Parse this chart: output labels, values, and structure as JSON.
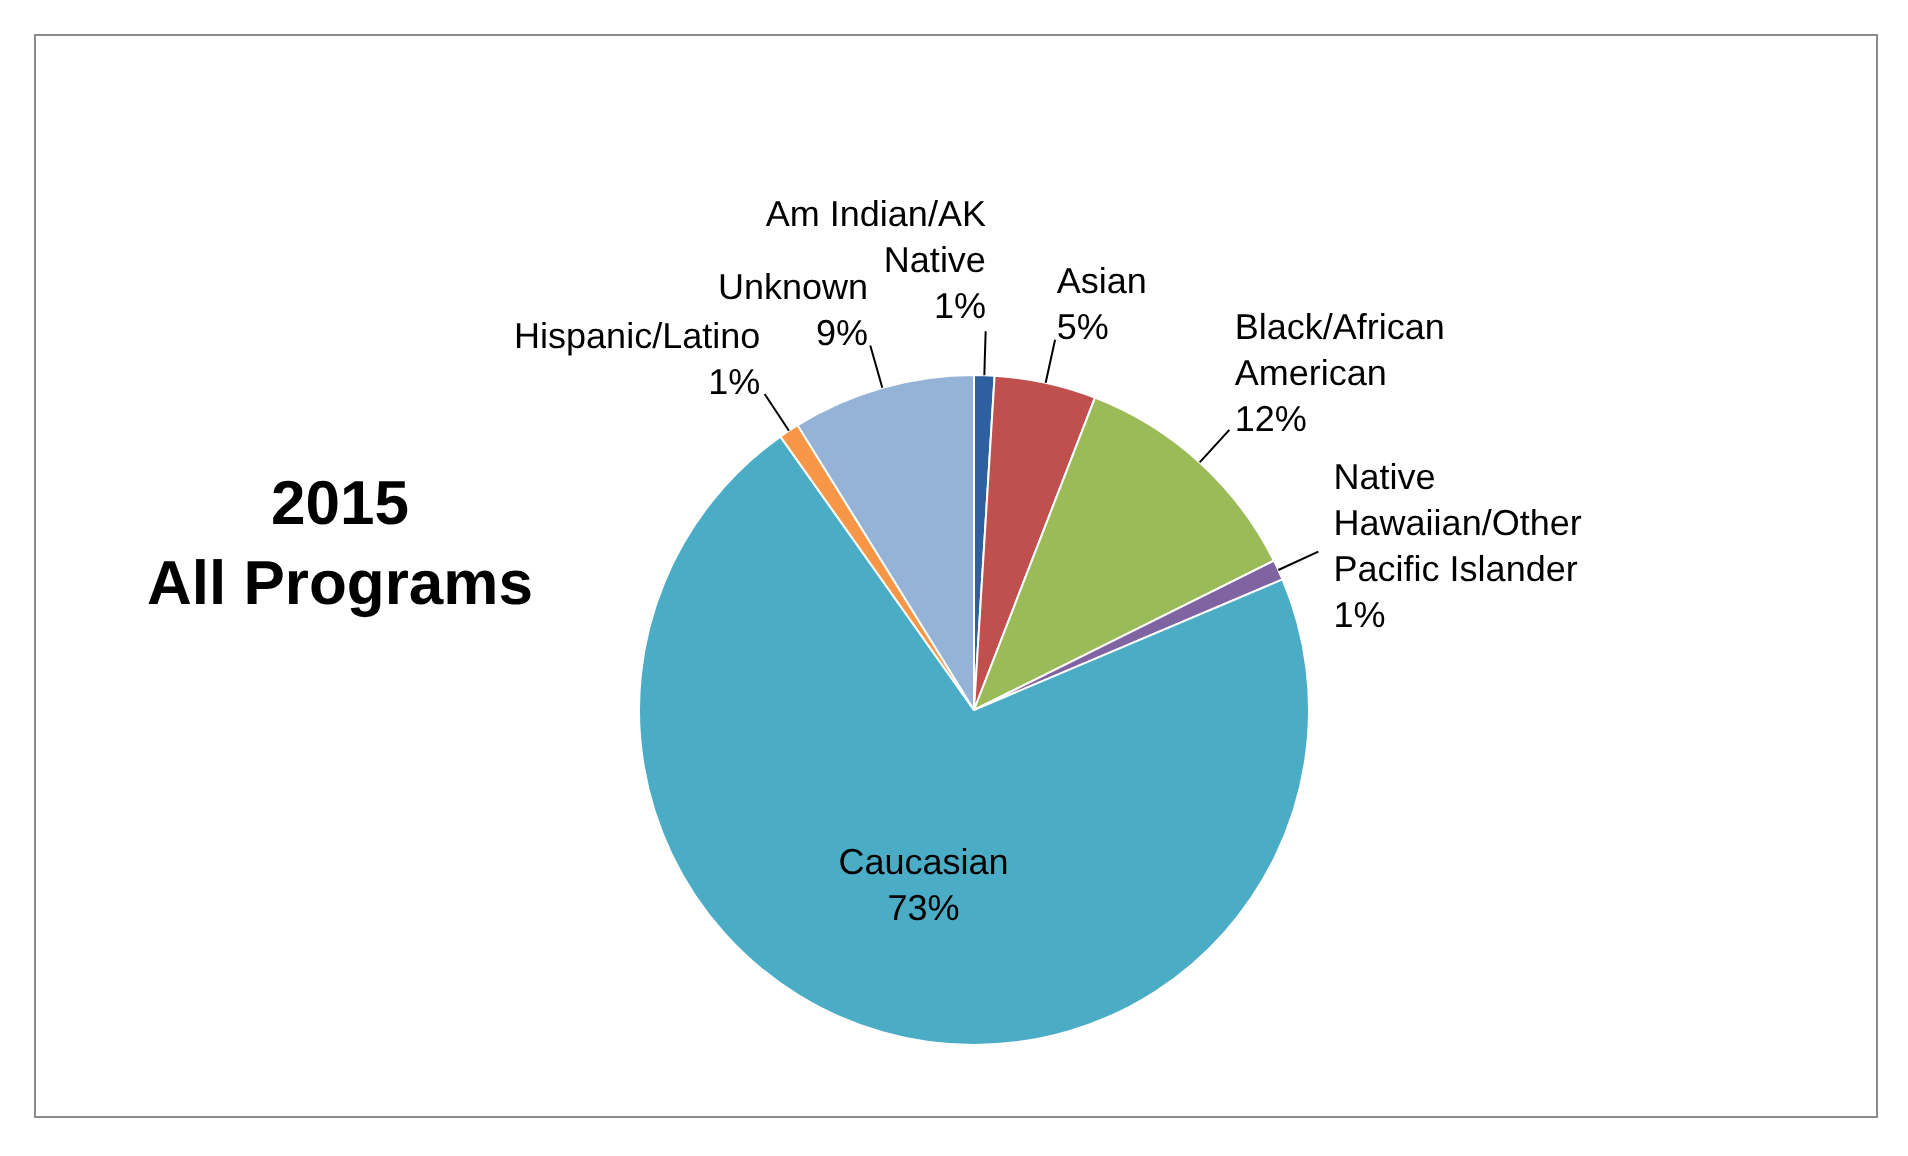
{
  "chart_data": {
    "type": "pie",
    "title": "2015 All Programs",
    "categories": [
      "Am Indian/AK Native",
      "Asian",
      "Black/African American",
      "Native Hawaiian/Other Pacific Islander",
      "Caucasian",
      "Hispanic/Latino",
      "Unknown"
    ],
    "values": [
      1,
      5,
      12,
      1,
      73,
      1,
      9
    ],
    "colors": [
      "#2e5f9e",
      "#c0504d",
      "#9bbb59",
      "#8064a2",
      "#4bacc6",
      "#f79646",
      "#95b3d7"
    ],
    "value_labels": [
      "1%",
      "5%",
      "12%",
      "1%",
      "73%",
      "1%",
      "9%"
    ],
    "legend": false
  }
}
